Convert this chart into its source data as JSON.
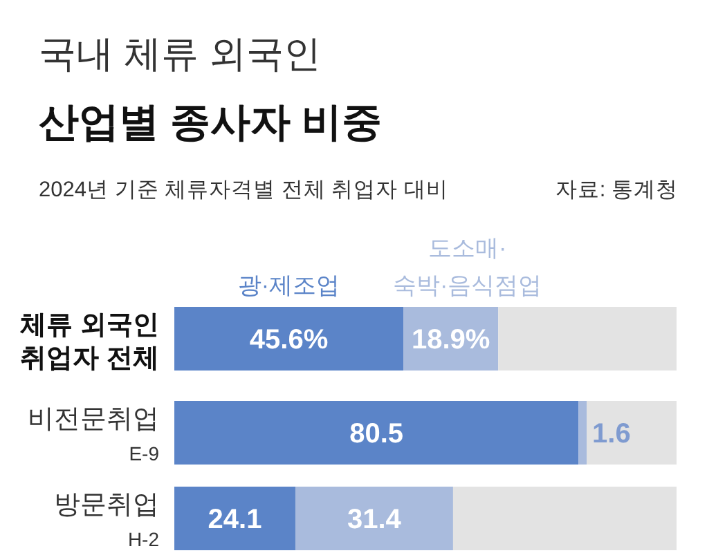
{
  "chart_data": {
    "type": "bar",
    "orientation": "horizontal",
    "stacked": true,
    "title": "국내 체류 외국인\n산업별 종사자 비중",
    "subtitle": "2024년 기준 체류자격별 전체 취업자 대비",
    "annotations": [
      "자료: 통계청"
    ],
    "categories": [
      "체류 외국인\n취업자 전체",
      "비전문취업\nE-9",
      "방문취업\nH-2"
    ],
    "xlim": [
      0,
      100
    ],
    "legend": "top",
    "series": [
      {
        "name": "광·제조업",
        "color": "#5b84c8",
        "values": [
          45.6,
          80.5,
          24.1
        ],
        "value_labels": [
          "45.6%",
          "80.5",
          "24.1"
        ]
      },
      {
        "name": "도소매·\n숙박·음식점업",
        "color": "#a9bbdd",
        "values": [
          18.9,
          1.6,
          31.4
        ],
        "value_labels": [
          "18.9%",
          "1.6",
          "31.4"
        ]
      },
      {
        "color": "#e3e3e3",
        "values": [
          35.5,
          17.9,
          44.5
        ],
        "value_labels": [
          null,
          null,
          null
        ]
      }
    ]
  }
}
